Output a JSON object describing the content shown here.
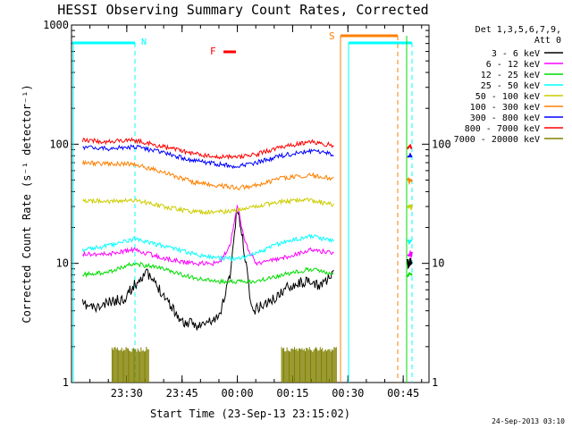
{
  "chart_data": {
    "type": "line",
    "title": "HESSI Observing Summary Count Rates, Corrected",
    "xlabel": "Start Time (23-Sep-13 23:15:02)",
    "ylabel": "Corrected Count Rate (s⁻¹ detector⁻¹)",
    "ylog": true,
    "ylim": [
      1,
      1000
    ],
    "xlim": [
      "23:15",
      "00:52"
    ],
    "x_ticks": [
      "23:30",
      "23:45",
      "00:00",
      "00:15",
      "00:30",
      "00:45"
    ],
    "y_ticks": [
      "1",
      "10",
      "100",
      "1000"
    ],
    "y_ticks_right": [
      "1",
      "10",
      "100"
    ],
    "footer_date": "24-Sep-2013 03:10",
    "legend_header": [
      "Det 1,3,5,6,7,9,",
      "Att 0"
    ],
    "series": [
      {
        "name": "3 - 6 keV",
        "color": "#000000",
        "x": [
          "23:18",
          "23:22",
          "23:26",
          "23:29",
          "23:32",
          "23:35",
          "23:40",
          "23:45",
          "23:50",
          "23:55",
          "23:58",
          "00:00",
          "00:02",
          "00:04",
          "00:07",
          "00:10",
          "00:14",
          "00:18",
          "00:22",
          "00:26",
          "00:28"
        ],
        "values": [
          4.5,
          4.2,
          4.8,
          5,
          6.5,
          8.5,
          5.5,
          3.2,
          3,
          3.5,
          8,
          30,
          12,
          4,
          4.5,
          5,
          6.5,
          7,
          6.5,
          8,
          10
        ]
      },
      {
        "name": "6 - 12 keV",
        "color": "#ff00ff",
        "x": [
          "23:18",
          "23:25",
          "23:32",
          "23:40",
          "23:48",
          "23:55",
          "23:58",
          "00:00",
          "00:02",
          "00:05",
          "00:12",
          "00:20",
          "00:28"
        ],
        "values": [
          12,
          12,
          13,
          11,
          10,
          10,
          14,
          32,
          15,
          10,
          11,
          13,
          12
        ]
      },
      {
        "name": "12 - 25 keV",
        "color": "#00dd00",
        "x": [
          "23:18",
          "23:25",
          "23:32",
          "23:40",
          "23:48",
          "23:55",
          "00:00",
          "00:05",
          "00:12",
          "00:20",
          "00:28"
        ],
        "values": [
          8,
          8.5,
          10,
          9,
          7.5,
          7,
          7,
          7,
          8,
          9,
          8
        ]
      },
      {
        "name": "25 - 50 keV",
        "color": "#00ffff",
        "x": [
          "23:18",
          "23:25",
          "23:32",
          "23:40",
          "23:48",
          "23:55",
          "00:00",
          "00:05",
          "00:12",
          "00:20",
          "00:28"
        ],
        "values": [
          13,
          14,
          16,
          14,
          12,
          11,
          11,
          12,
          15,
          17,
          15
        ]
      },
      {
        "name": "50 - 100 keV",
        "color": "#cccc00",
        "x": [
          "23:18",
          "23:25",
          "23:32",
          "23:40",
          "23:48",
          "23:55",
          "00:00",
          "00:05",
          "00:12",
          "00:20",
          "00:28"
        ],
        "values": [
          34,
          33,
          34,
          30,
          27,
          27,
          28,
          30,
          33,
          34,
          30
        ]
      },
      {
        "name": "100 - 300 keV",
        "color": "#ff8000",
        "x": [
          "23:18",
          "23:25",
          "23:32",
          "23:40",
          "23:48",
          "23:55",
          "00:00",
          "00:05",
          "00:12",
          "00:20",
          "00:28"
        ],
        "values": [
          70,
          68,
          68,
          58,
          48,
          45,
          43,
          45,
          52,
          55,
          50
        ]
      },
      {
        "name": "300 - 800 keV",
        "color": "#0000ff",
        "x": [
          "23:18",
          "23:25",
          "23:32",
          "23:40",
          "23:48",
          "23:55",
          "00:00",
          "00:05",
          "00:12",
          "00:20",
          "00:28"
        ],
        "values": [
          95,
          92,
          95,
          85,
          73,
          68,
          65,
          70,
          80,
          88,
          80
        ]
      },
      {
        "name": "800 - 7000 keV",
        "color": "#ff0000",
        "x": [
          "23:18",
          "23:25",
          "23:32",
          "23:40",
          "23:48",
          "23:55",
          "00:00",
          "00:05",
          "00:12",
          "00:20",
          "00:28"
        ],
        "values": [
          108,
          105,
          108,
          95,
          83,
          78,
          78,
          82,
          95,
          105,
          95
        ]
      },
      {
        "name": "7000 - 20000 keV",
        "color": "#808000",
        "x": [
          "23:26",
          "23:36",
          "00:12",
          "00:27"
        ],
        "values": [
          2,
          2,
          2,
          2
        ]
      }
    ],
    "flags": [
      {
        "label": "N",
        "color": "#00ffff"
      },
      {
        "label": "F",
        "color": "#ff0000"
      },
      {
        "label": "S",
        "color": "#ff8000"
      }
    ]
  }
}
